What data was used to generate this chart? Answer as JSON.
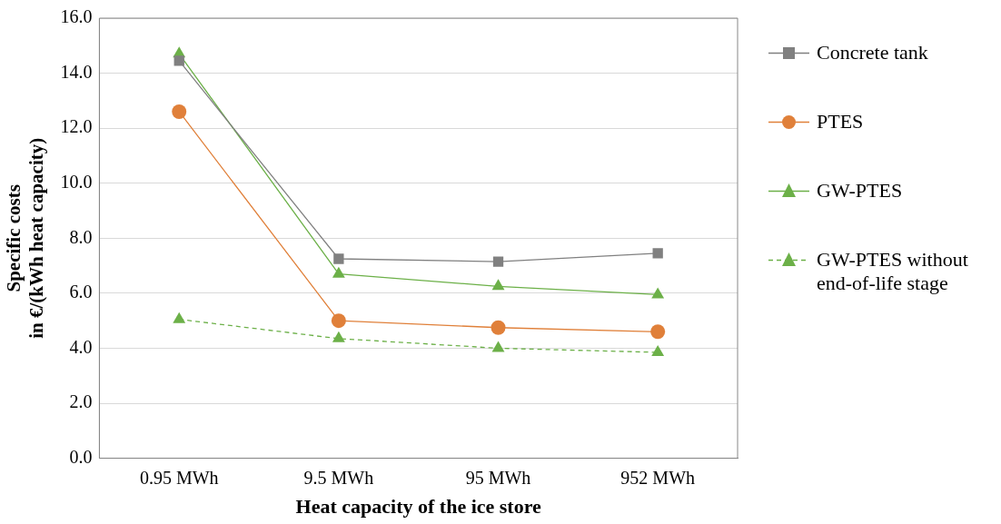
{
  "chart_data": {
    "type": "line",
    "xlabel": "Heat capacity of the ice store",
    "ylabel": "Specific costs\nin €/(kWh heat capacity)",
    "categories": [
      "0.95 MWh",
      "9.5 MWh",
      "95 MWh",
      "952 MWh"
    ],
    "series": [
      {
        "name": "Concrete tank",
        "color": "#808080",
        "marker": "square",
        "values": [
          14.45,
          7.25,
          7.15,
          7.45
        ]
      },
      {
        "name": "PTES",
        "color": "#e0803a",
        "marker": "circle",
        "values": [
          12.6,
          5.0,
          4.75,
          4.6
        ]
      },
      {
        "name": "GW-PTES",
        "color": "#6cb048",
        "marker": "triangle",
        "values": [
          14.7,
          6.7,
          6.25,
          5.95
        ]
      },
      {
        "name": "GW-PTES without end-of-life stage",
        "color": "#6cb048",
        "marker": "triangle",
        "line_style": "dashed",
        "values": [
          5.05,
          4.35,
          4.0,
          3.85
        ]
      }
    ],
    "ylim": [
      0,
      16
    ],
    "yticks": [
      {
        "value": 0,
        "label": "0.0"
      },
      {
        "value": 2,
        "label": "2.0"
      },
      {
        "value": 4,
        "label": "4.0"
      },
      {
        "value": 6,
        "label": "6.0"
      },
      {
        "value": 8,
        "label": "8.0"
      },
      {
        "value": 10,
        "label": "10.0"
      },
      {
        "value": 12,
        "label": "12.0"
      },
      {
        "value": 14,
        "label": "14.0"
      },
      {
        "value": 16,
        "label": "16.0"
      }
    ],
    "grid": "y",
    "legend": "right"
  }
}
